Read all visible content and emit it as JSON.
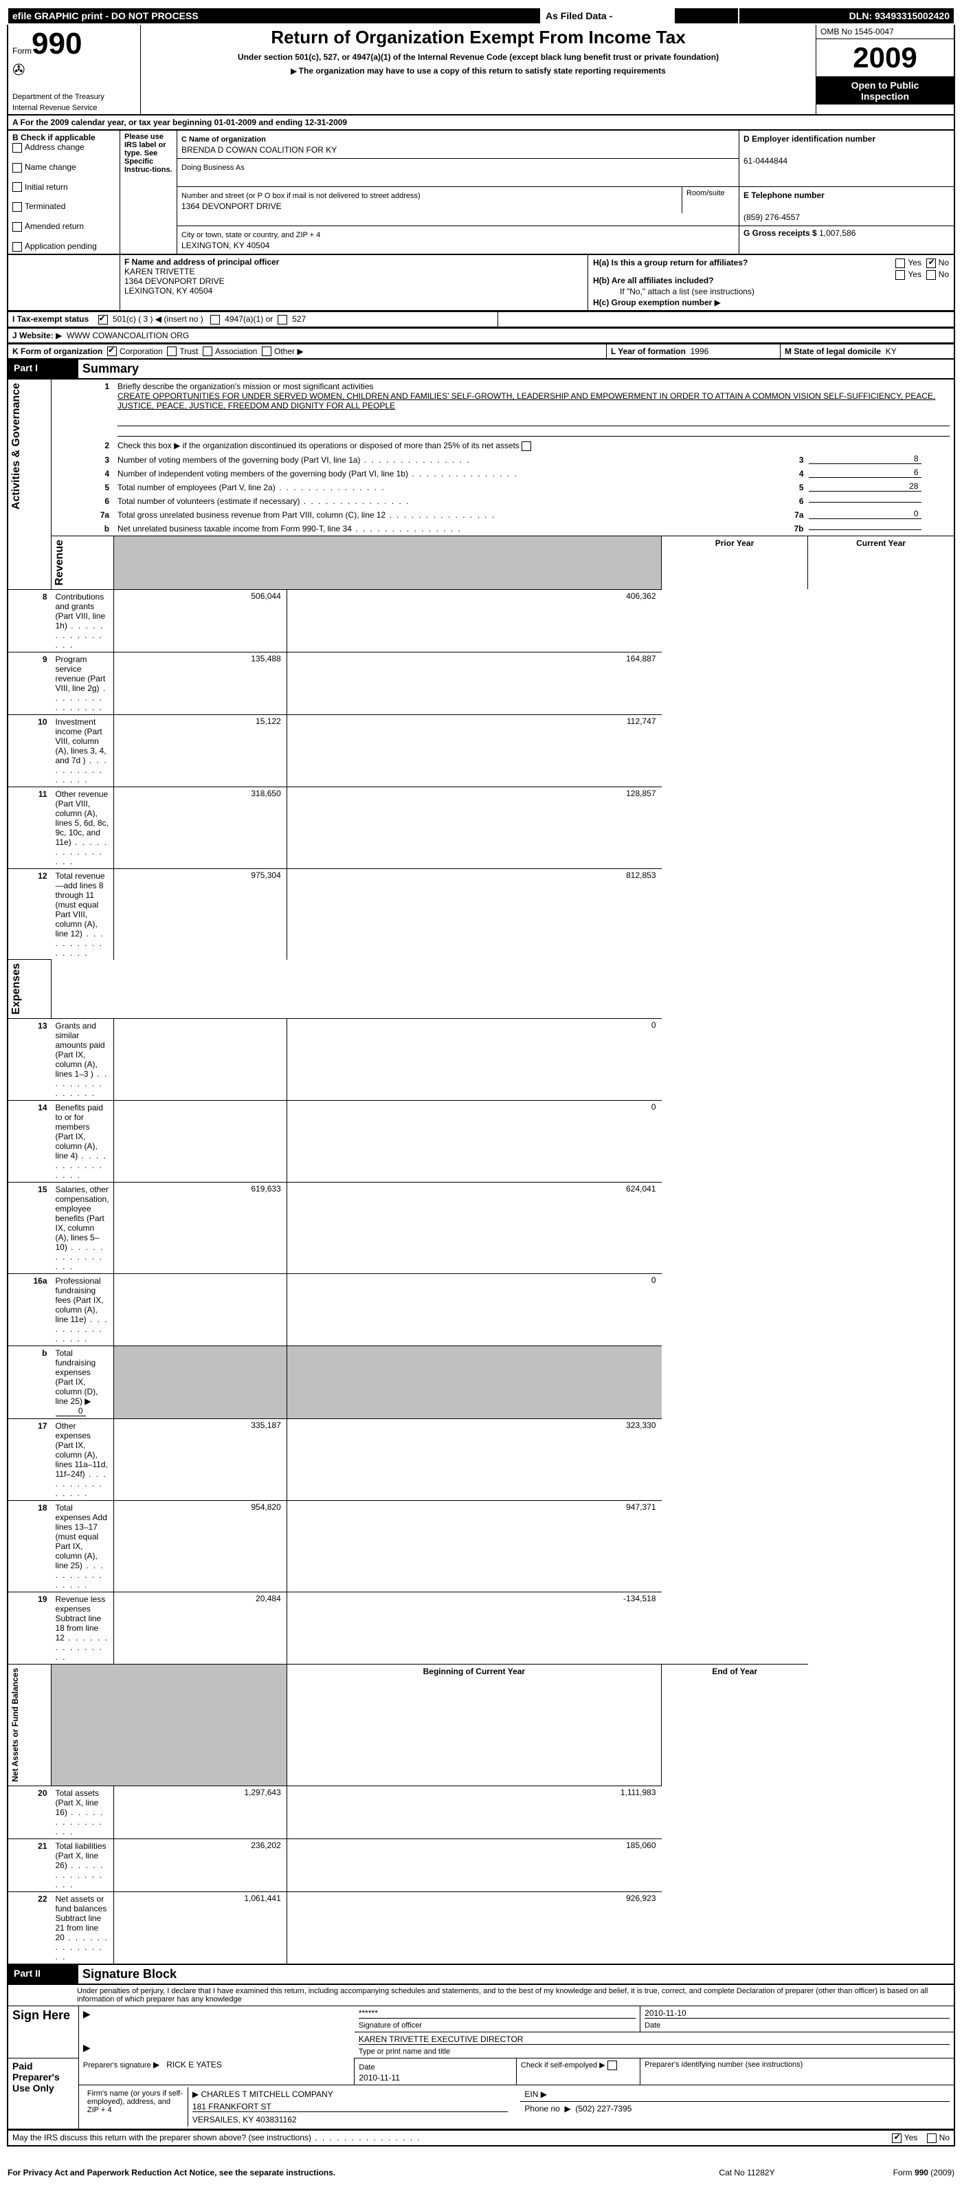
{
  "topbar": {
    "efile": "efile GRAPHIC print - DO NOT PROCESS",
    "asfiled": "As Filed Data -",
    "dln_label": "DLN:",
    "dln": "93493315002420"
  },
  "header": {
    "form": "Form",
    "form_no": "990",
    "dept1": "Department of the Treasury",
    "dept2": "Internal Revenue Service",
    "title": "Return of Organization Exempt From Income Tax",
    "subtitle": "Under section 501(c), 527, or 4947(a)(1) of the Internal Revenue Code (except black lung benefit trust or private foundation)",
    "copy_note": "The organization may have to use a copy of this return to satisfy state reporting requirements",
    "omb": "OMB No  1545-0047",
    "year": "2009",
    "inspection1": "Open to Public",
    "inspection2": "Inspection"
  },
  "A": {
    "label": "A  For the 2009 calendar year, or tax year beginning 01-01-2009     and ending 12-31-2009"
  },
  "B": {
    "head": "B  Check if applicable",
    "instr": "Please use IRS label or type. See Specific Instruc-tions.",
    "addr_change": "Address change",
    "name_change": "Name change",
    "initial": "Initial return",
    "terminated": "Terminated",
    "amended": "Amended return",
    "pending": "Application pending"
  },
  "C": {
    "name_label": "C Name of organization",
    "name": "BRENDA D COWAN COALITION FOR KY",
    "dba_label": "Doing Business As",
    "addr_label": "Number and street (or P O  box if mail is not delivered to street address)",
    "room_label": "Room/suite",
    "addr": "1364 DEVONPORT DRIVE",
    "city_label": "City or town, state or country, and ZIP + 4",
    "city": "LEXINGTON, KY  40504"
  },
  "D": {
    "label": "D Employer identification number",
    "value": "61-0444844"
  },
  "E": {
    "label": "E Telephone number",
    "value": "(859) 276-4557"
  },
  "G": {
    "label": "G Gross receipts $",
    "value": "1,007,586"
  },
  "F": {
    "label": "F   Name and address of principal officer",
    "line1": "KAREN TRIVETTE",
    "line2": "1364 DEVONPORT DRIVE",
    "line3": "LEXINGTON, KY  40504"
  },
  "H": {
    "a": "H(a)  Is this a group return for affiliates?",
    "b": "H(b)  Are all affiliates included?",
    "b_note": "If \"No,\" attach a list  (see instructions)",
    "c": "H(c)   Group exemption number",
    "yes": "Yes",
    "no": "No"
  },
  "I": {
    "label": "I   Tax-exempt status",
    "c501": "501(c) ( 3 )",
    "insert": "(insert no )",
    "a4947": "4947(a)(1) or",
    "s527": "527"
  },
  "J": {
    "label": "J   Website:",
    "value": "WWW COWANCOALITION ORG"
  },
  "K": {
    "label": "K Form of organization",
    "corp": "Corporation",
    "trust": "Trust",
    "assoc": "Association",
    "other": "Other"
  },
  "L": {
    "label": "L Year of formation",
    "value": "1996"
  },
  "M": {
    "label": "M State of legal domicile",
    "value": "KY"
  },
  "partI": {
    "head": "Part I",
    "title": "Summary",
    "sections": {
      "activities": "Activities & Governance",
      "revenue": "Revenue",
      "expenses": "Expenses",
      "netassets": "Net Assets or Fund Balances"
    },
    "l1_label": "Briefly describe the organization's mission or most significant activities",
    "l1_text": "CREATE OPPORTUNITIES FOR UNDER SERVED WOMEN, CHILDREN AND FAMILIES' SELF-GROWTH, LEADERSHIP AND EMPOWERMENT IN ORDER TO ATTAIN A COMMON VISION  SELF-SUFFICIENCY, PEACE, JUSTICE, PEACE, JUSTICE, FREEDOM AND DIGNITY FOR ALL PEOPLE",
    "l2": "Check this box ▶     if the organization discontinued its operations or disposed of more than 25% of its net assets",
    "rows_top": [
      {
        "n": "3",
        "t": "Number of voting members of the governing body (Part VI, line 1a)",
        "rn": "3",
        "v": "8"
      },
      {
        "n": "4",
        "t": "Number of independent voting members of the governing body (Part VI, line 1b)",
        "rn": "4",
        "v": "6"
      },
      {
        "n": "5",
        "t": "Total number of employees (Part V, line 2a)",
        "rn": "5",
        "v": "28"
      },
      {
        "n": "6",
        "t": "Total number of volunteers (estimate if necessary)",
        "rn": "6",
        "v": ""
      },
      {
        "n": "7a",
        "t": "Total gross unrelated business revenue from Part VIII, column (C), line 12",
        "rn": "7a",
        "v": "0"
      },
      {
        "n": "b",
        "t": "Net unrelated business taxable income from Form 990-T, line 34",
        "rn": "7b",
        "v": ""
      }
    ],
    "col_prior": "Prior Year",
    "col_current": "Current Year",
    "rows_rev": [
      {
        "n": "8",
        "t": "Contributions and grants (Part VIII, line 1h)",
        "p": "506,044",
        "c": "406,362"
      },
      {
        "n": "9",
        "t": "Program service revenue (Part VIII, line 2g)",
        "p": "135,488",
        "c": "164,887"
      },
      {
        "n": "10",
        "t": "Investment income (Part VIII, column (A), lines 3, 4, and 7d )",
        "p": "15,122",
        "c": "112,747"
      },
      {
        "n": "11",
        "t": "Other revenue (Part VIII, column (A), lines 5, 6d, 8c, 9c, 10c, and 11e)",
        "p": "318,650",
        "c": "128,857"
      },
      {
        "n": "12",
        "t": "Total revenue—add lines 8 through 11 (must equal Part VIII, column (A), line 12)",
        "p": "975,304",
        "c": "812,853"
      }
    ],
    "rows_exp": [
      {
        "n": "13",
        "t": "Grants and similar amounts paid (Part IX, column (A), lines 1–3 )",
        "p": "",
        "c": "0"
      },
      {
        "n": "14",
        "t": "Benefits paid to or for members (Part IX, column (A), line 4)",
        "p": "",
        "c": "0"
      },
      {
        "n": "15",
        "t": "Salaries, other compensation, employee benefits (Part IX, column (A), lines 5–10)",
        "p": "619,633",
        "c": "624,041"
      },
      {
        "n": "16a",
        "t": "Professional fundraising fees (Part IX, column (A), line 11e)",
        "p": "",
        "c": "0"
      },
      {
        "n": "b",
        "t": "Total fundraising expenses (Part IX, column (D), line 25) ▶",
        "p": "",
        "c": "",
        "extra": "0"
      },
      {
        "n": "17",
        "t": "Other expenses (Part IX, column (A), lines 11a–11d, 11f–24f)",
        "p": "335,187",
        "c": "323,330"
      },
      {
        "n": "18",
        "t": "Total expenses  Add lines 13–17 (must equal Part IX, column (A), line 25)",
        "p": "954,820",
        "c": "947,371"
      },
      {
        "n": "19",
        "t": "Revenue less expenses  Subtract line 18 from line 12",
        "p": "20,484",
        "c": "-134,518"
      }
    ],
    "col_begin": "Beginning of Current Year",
    "col_end": "End of Year",
    "rows_net": [
      {
        "n": "20",
        "t": "Total assets (Part X, line 16)",
        "p": "1,297,643",
        "c": "1,111,983"
      },
      {
        "n": "21",
        "t": "Total liabilities (Part X, line 26)",
        "p": "236,202",
        "c": "185,060"
      },
      {
        "n": "22",
        "t": "Net assets or fund balances  Subtract line 21 from line 20",
        "p": "1,061,441",
        "c": "926,923"
      }
    ]
  },
  "partII": {
    "head": "Part II",
    "title": "Signature Block",
    "perjury": "Under penalties of perjury, I declare that I have examined this return, including accompanying schedules and statements, and to the best of my knowledge and belief, it is true, correct, and complete  Declaration of preparer (other than officer) is based on all information of which preparer has any knowledge",
    "sign_here": "Sign Here",
    "sig_stars": "******",
    "sig_of_officer": "Signature of officer",
    "sig_date": "2010-11-10",
    "date": "Date",
    "officer_name": "KAREN TRIVETTE  EXECUTIVE DIRECTOR",
    "type_name": "Type or print name and title",
    "paid": "Paid Preparer's Use Only",
    "prep_sig": "Preparer's signature",
    "prep_name": "RICK E YATES",
    "prep_date": "2010-11-11",
    "check_if": "Check if self-empolyed",
    "prep_id": "Preparer's identifying number (see instructions)",
    "firm_label": "Firm's name (or yours if self-employed), address, and ZIP + 4",
    "firm_name": "CHARLES T MITCHELL COMPANY",
    "firm_addr": "181 FRANKFORT ST",
    "firm_city": "VERSAILES, KY  403831162",
    "ein": "EIN",
    "phone": "Phone no",
    "phone_val": "(502) 227-7395",
    "discuss": "May the IRS discuss this return with the preparer shown above? (see instructions)",
    "yes": "Yes",
    "no": "No"
  },
  "footer": {
    "privacy": "For Privacy Act and Paperwork Reduction Act Notice, see the separate instructions.",
    "cat": "Cat  No  11282Y",
    "form": "Form 990 (2009)"
  }
}
